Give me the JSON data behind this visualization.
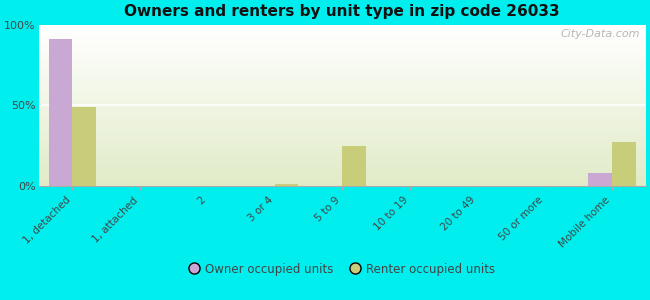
{
  "title": "Owners and renters by unit type in zip code 26033",
  "categories": [
    "1, detached",
    "1, attached",
    "2",
    "3 or 4",
    "5 to 9",
    "10 to 19",
    "20 to 49",
    "50 or more",
    "Mobile home"
  ],
  "owner_values": [
    91,
    0,
    0,
    0,
    0,
    0,
    0,
    0,
    8
  ],
  "renter_values": [
    49,
    0,
    0,
    1,
    25,
    0,
    0,
    0,
    27
  ],
  "owner_color": "#c9a8d4",
  "renter_color": "#c8cd7a",
  "background_color": "#00eeee",
  "ylim": [
    0,
    100
  ],
  "yticks": [
    0,
    50,
    100
  ],
  "ytick_labels": [
    "0%",
    "50%",
    "100%"
  ],
  "bar_width": 0.35,
  "legend_owner": "Owner occupied units",
  "legend_renter": "Renter occupied units",
  "watermark": "City-Data.com"
}
